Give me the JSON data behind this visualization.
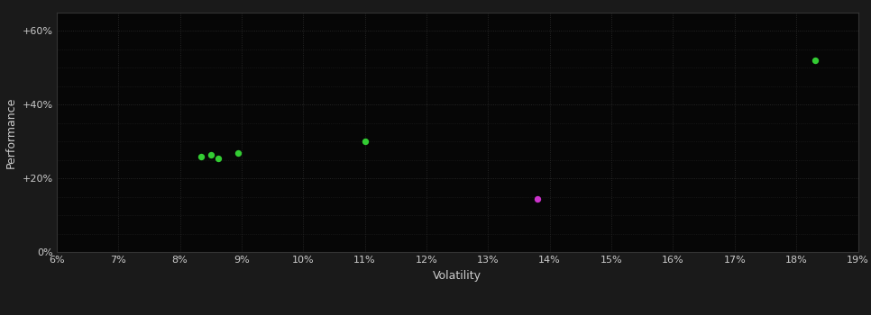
{
  "background_color": "#1a1a1a",
  "plot_bg_color": "#060606",
  "grid_color": "#2d2d2d",
  "text_color": "#cccccc",
  "xlabel": "Volatility",
  "ylabel": "Performance",
  "xlim": [
    0.06,
    0.19
  ],
  "ylim": [
    0.0,
    0.65
  ],
  "xticks": [
    0.06,
    0.07,
    0.08,
    0.09,
    0.1,
    0.11,
    0.12,
    0.13,
    0.14,
    0.15,
    0.16,
    0.17,
    0.18,
    0.19
  ],
  "yticks_major": [
    0.0,
    0.2,
    0.4,
    0.6
  ],
  "yticks_minor": [
    0.0,
    0.05,
    0.1,
    0.15,
    0.2,
    0.25,
    0.3,
    0.35,
    0.4,
    0.45,
    0.5,
    0.55,
    0.6,
    0.65
  ],
  "green_points": [
    [
      0.0835,
      0.258
    ],
    [
      0.085,
      0.263
    ],
    [
      0.0862,
      0.255
    ],
    [
      0.0895,
      0.27
    ],
    [
      0.11,
      0.3
    ],
    [
      0.183,
      0.52
    ]
  ],
  "magenta_points": [
    [
      0.138,
      0.145
    ]
  ],
  "green_color": "#33cc33",
  "magenta_color": "#cc33cc",
  "marker_size": 28
}
